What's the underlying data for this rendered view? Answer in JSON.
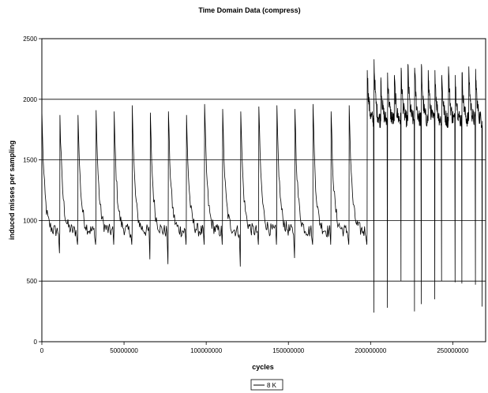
{
  "chart_data": {
    "type": "line",
    "title": "Time Domain Data (compress)",
    "xlabel": "cycles",
    "ylabel": "induced misses per sampling",
    "xlim": [
      0,
      270000000
    ],
    "ylim": [
      0,
      2500
    ],
    "xticks": [
      0,
      50000000,
      100000000,
      150000000,
      200000000,
      250000000
    ],
    "xtick_labels": [
      "0",
      "50000000",
      "100000000",
      "150000000",
      "200000000",
      "250000000"
    ],
    "yticks": [
      0,
      500,
      1000,
      1500,
      2000,
      2500
    ],
    "ytick_labels": [
      "0",
      "500",
      "1000",
      "1500",
      "2000",
      "2500"
    ],
    "grid": "horizontal",
    "legend": "bottom-center",
    "series_color": "#000000",
    "series": [
      {
        "name": "8 K",
        "phase1": {
          "x_start": 0,
          "x_end": 198000000,
          "cycles": 18,
          "peak_values": [
            1910,
            1870,
            1870,
            1910,
            1900,
            1950,
            1890,
            1900,
            1870,
            1960,
            1920,
            1900,
            1940,
            1950,
            1920,
            1960,
            1900,
            1950
          ],
          "dip_values": [
            730,
            800,
            800,
            800,
            800,
            680,
            640,
            800,
            800,
            800,
            620,
            800,
            800,
            690,
            800,
            800,
            800,
            800
          ],
          "baseline": 910
        },
        "phase2": {
          "x_start": 198000000,
          "x_end": 268000000,
          "cycles": 17,
          "peak_values": [
            2240,
            2330,
            2180,
            2220,
            2200,
            2260,
            2290,
            2260,
            2290,
            2240,
            2240,
            2200,
            2270,
            2200,
            2220,
            2270,
            2250
          ],
          "dip_values": [
            240,
            1850,
            280,
            1850,
            500,
            1850,
            250,
            310,
            1850,
            350,
            500,
            1850,
            490,
            480,
            1850,
            470,
            290
          ],
          "baseline": 1820
        }
      }
    ]
  }
}
